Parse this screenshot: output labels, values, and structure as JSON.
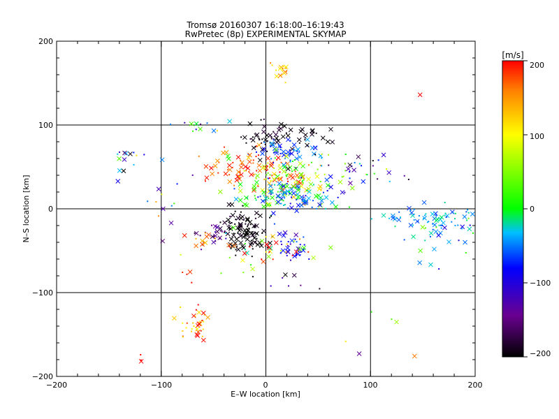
{
  "chart_data": {
    "type": "scatter",
    "title": "Tromsø 20160307 16:18:00–16:19:43",
    "subtitle": "RwPretec (8p) EXPERIMENTAL SKYMAP",
    "xlabel": "E–W location [km]",
    "ylabel": "N–S location [km]",
    "xlim": [
      -200,
      200
    ],
    "ylim": [
      -200,
      200
    ],
    "xticks": [
      "−200",
      "−100",
      "0",
      "100",
      "200"
    ],
    "yticks": [
      "−200",
      "−100",
      "0",
      "100",
      "200"
    ],
    "grid": true,
    "colorbar": {
      "label": "[m/s]",
      "range": [
        -200,
        200
      ],
      "ticks": [
        "200",
        "100",
        "0",
        "−100",
        "−200"
      ],
      "colormap": "black-purple-blue-cyan-green-yellow-red"
    },
    "marker_types": [
      "dot",
      "x"
    ],
    "clusters": [
      {
        "x": 15,
        "y": 165,
        "sx": 5,
        "sy": 6,
        "n": 18,
        "v": 130,
        "dv": 35
      },
      {
        "x": 148,
        "y": 136,
        "sx": 1,
        "sy": 1,
        "n": 1,
        "v": 200,
        "dv": 0
      },
      {
        "x": -60,
        "y": 100,
        "sx": 14,
        "sy": 5,
        "n": 12,
        "v": -20,
        "dv": 150
      },
      {
        "x": 0,
        "y": 85,
        "sx": 14,
        "sy": 10,
        "n": 45,
        "v": -190,
        "dv": 20
      },
      {
        "x": 18,
        "y": 68,
        "sx": 14,
        "sy": 7,
        "n": 55,
        "v": -60,
        "dv": 30
      },
      {
        "x": -25,
        "y": 48,
        "sx": 18,
        "sy": 10,
        "n": 55,
        "v": 170,
        "dv": 30
      },
      {
        "x": 15,
        "y": 38,
        "sx": 20,
        "sy": 14,
        "n": 140,
        "v": 110,
        "dv": 110
      },
      {
        "x": 20,
        "y": 12,
        "sx": 22,
        "sy": 10,
        "n": 110,
        "v": -40,
        "dv": 60
      },
      {
        "x": 80,
        "y": 45,
        "sx": 30,
        "sy": 12,
        "n": 45,
        "v": -60,
        "dv": 150
      },
      {
        "x": -135,
        "y": 55,
        "sx": 10,
        "sy": 12,
        "n": 14,
        "v": -50,
        "dv": 180
      },
      {
        "x": -20,
        "y": -25,
        "sx": 10,
        "sy": 12,
        "n": 110,
        "v": -195,
        "dv": 15
      },
      {
        "x": -50,
        "y": -30,
        "sx": 10,
        "sy": 10,
        "n": 25,
        "v": -150,
        "dv": 40
      },
      {
        "x": 30,
        "y": -45,
        "sx": 10,
        "sy": 10,
        "n": 35,
        "v": -90,
        "dv": 40
      },
      {
        "x": 0,
        "y": -50,
        "sx": 25,
        "sy": 18,
        "n": 40,
        "v": 100,
        "dv": 150
      },
      {
        "x": -60,
        "y": -40,
        "sx": 10,
        "sy": 6,
        "n": 12,
        "v": 170,
        "dv": 40
      },
      {
        "x": 160,
        "y": -12,
        "sx": 25,
        "sy": 8,
        "n": 75,
        "v": -40,
        "dv": 30
      },
      {
        "x": 175,
        "y": -40,
        "sx": 20,
        "sy": 20,
        "n": 25,
        "v": -20,
        "dv": 80
      },
      {
        "x": 40,
        "y": 85,
        "sx": 12,
        "sy": 8,
        "n": 20,
        "v": -195,
        "dv": 10
      },
      {
        "x": -95,
        "y": 10,
        "sx": 10,
        "sy": 30,
        "n": 14,
        "v": 0,
        "dv": 170
      },
      {
        "x": -65,
        "y": -135,
        "sx": 8,
        "sy": 10,
        "n": 35,
        "v": 150,
        "dv": 60
      },
      {
        "x": -120,
        "y": -178,
        "sx": 2,
        "sy": 3,
        "n": 4,
        "v": 200,
        "dv": 10
      },
      {
        "x": -75,
        "y": -80,
        "sx": 6,
        "sy": 6,
        "n": 4,
        "v": 190,
        "dv": 10
      },
      {
        "x": 20,
        "y": -90,
        "sx": 20,
        "sy": 10,
        "n": 8,
        "v": -150,
        "dv": 60
      },
      {
        "x": 110,
        "y": -140,
        "sx": 30,
        "sy": 30,
        "n": 6,
        "v": 0,
        "dv": 180
      }
    ]
  }
}
